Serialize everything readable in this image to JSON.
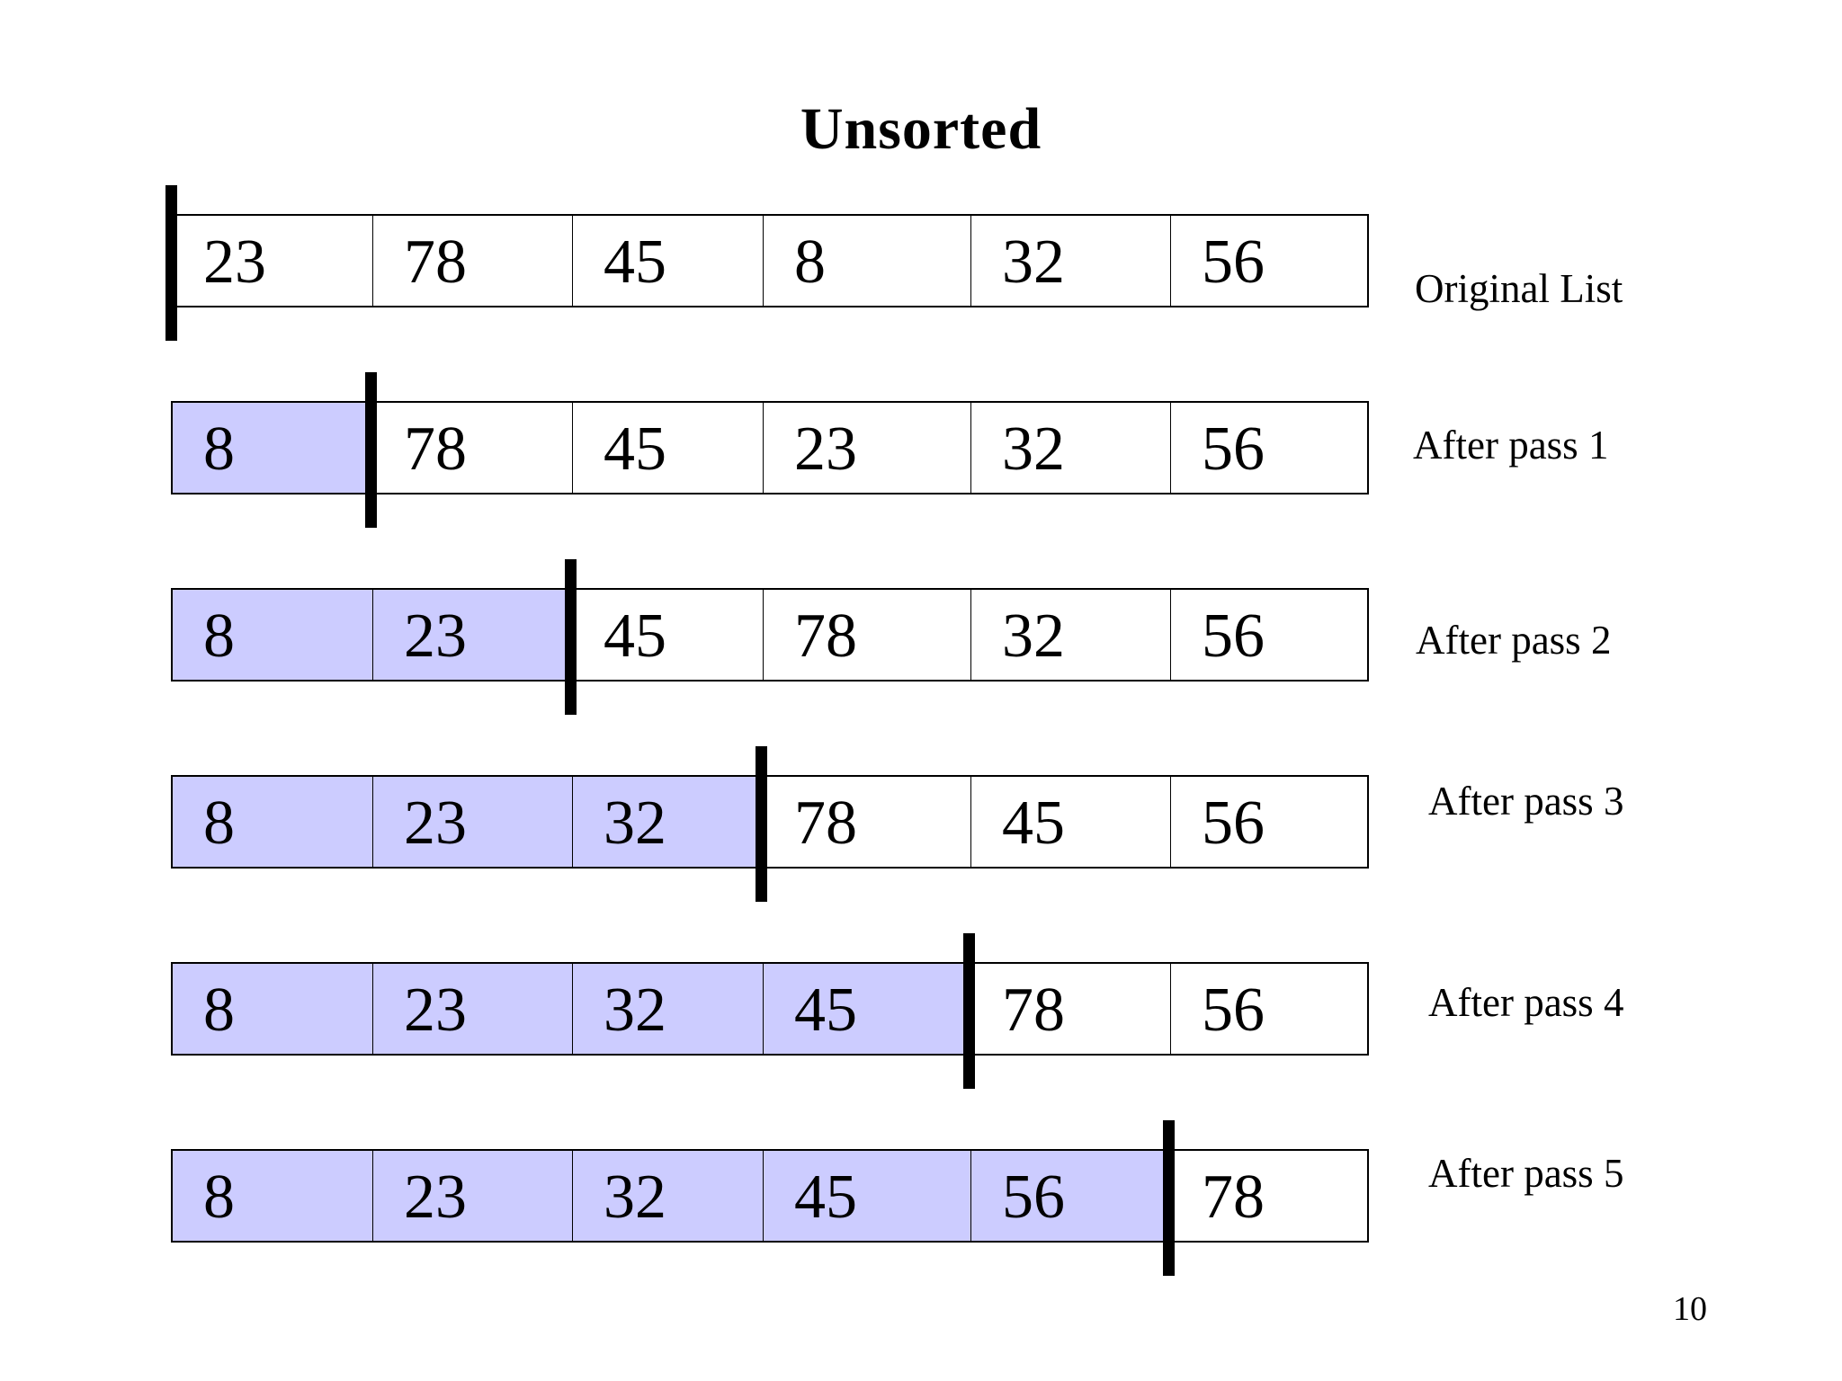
{
  "title": "Unsorted",
  "page_number": "10",
  "rows": [
    {
      "label": "Original List",
      "values": [
        "23",
        "78",
        "45",
        "8",
        "32",
        "56"
      ],
      "sorted_count": 0
    },
    {
      "label": "After pass 1",
      "values": [
        "8",
        "78",
        "45",
        "23",
        "32",
        "56"
      ],
      "sorted_count": 1
    },
    {
      "label": "After pass 2",
      "values": [
        "8",
        "23",
        "45",
        "78",
        "32",
        "56"
      ],
      "sorted_count": 2
    },
    {
      "label": "After pass 3",
      "values": [
        "8",
        "23",
        "32",
        "78",
        "45",
        "56"
      ],
      "sorted_count": 3
    },
    {
      "label": "After pass 4",
      "values": [
        "8",
        "23",
        "32",
        "45",
        "78",
        "56"
      ],
      "sorted_count": 4
    },
    {
      "label": "After pass 5",
      "values": [
        "8",
        "23",
        "32",
        "45",
        "56",
        "78"
      ],
      "sorted_count": 5
    }
  ],
  "colors": {
    "sorted_fill": "#ccccff",
    "unsorted_fill": "#ffffff",
    "border": "#000000",
    "marker": "#000000"
  }
}
